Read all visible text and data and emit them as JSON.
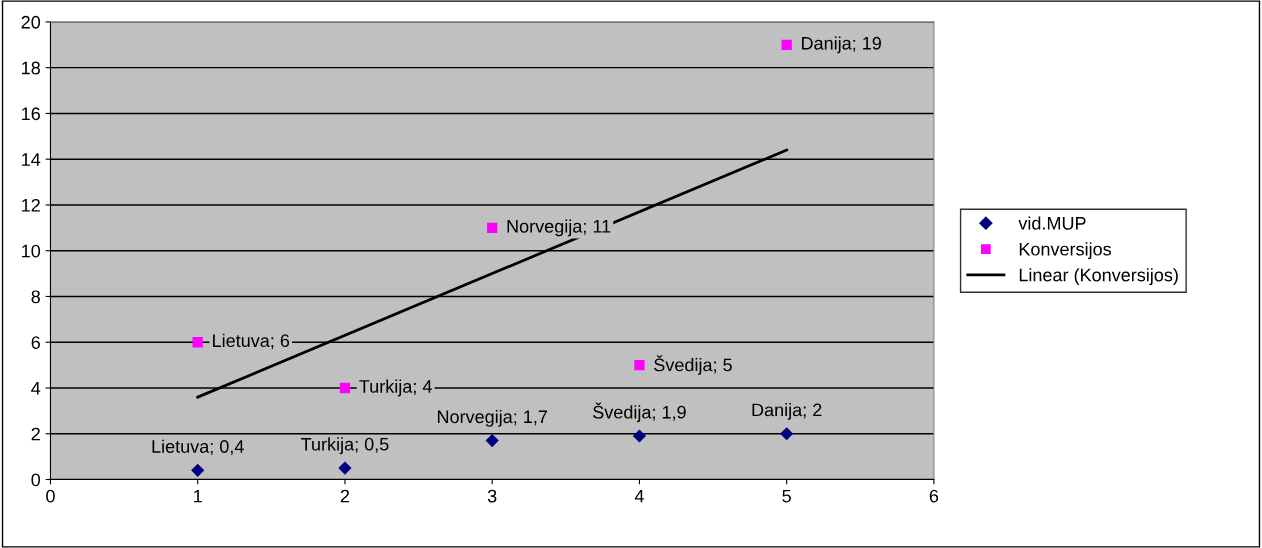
{
  "chart_data": {
    "type": "scatter",
    "x": [
      1,
      2,
      3,
      4,
      5
    ],
    "series": [
      {
        "name": "vid.MUP",
        "color": "#000080",
        "marker": "diamond",
        "values": [
          0.4,
          0.5,
          1.7,
          1.9,
          2
        ],
        "value_labels": [
          "Lietuva; 0,4",
          "Turkija; 0,5",
          "Norvegija; 1,7",
          "Švedija; 1,9",
          "Danija; 2"
        ]
      },
      {
        "name": "Konversijos",
        "color": "#ff00ff",
        "marker": "square",
        "values": [
          6,
          4,
          11,
          5,
          19
        ],
        "value_labels": [
          "Lietuva; 6",
          "Turkija; 4",
          "Norvegija; 11",
          "Švedija; 5",
          "Danija; 19"
        ]
      },
      {
        "name": "Linear (Konversijos)",
        "type": "line",
        "color": "#000000",
        "marker": "none",
        "line_style": "solid",
        "x": [
          1,
          5
        ],
        "values": [
          3.6,
          14.4
        ]
      }
    ],
    "xlim": [
      0,
      6
    ],
    "xticks": [
      0,
      1,
      2,
      3,
      4,
      5,
      6
    ],
    "ylim": [
      0,
      20
    ],
    "yticks": [
      0,
      2,
      4,
      6,
      8,
      10,
      12,
      14,
      16,
      18,
      20
    ],
    "grid": "y",
    "legend": "right"
  }
}
